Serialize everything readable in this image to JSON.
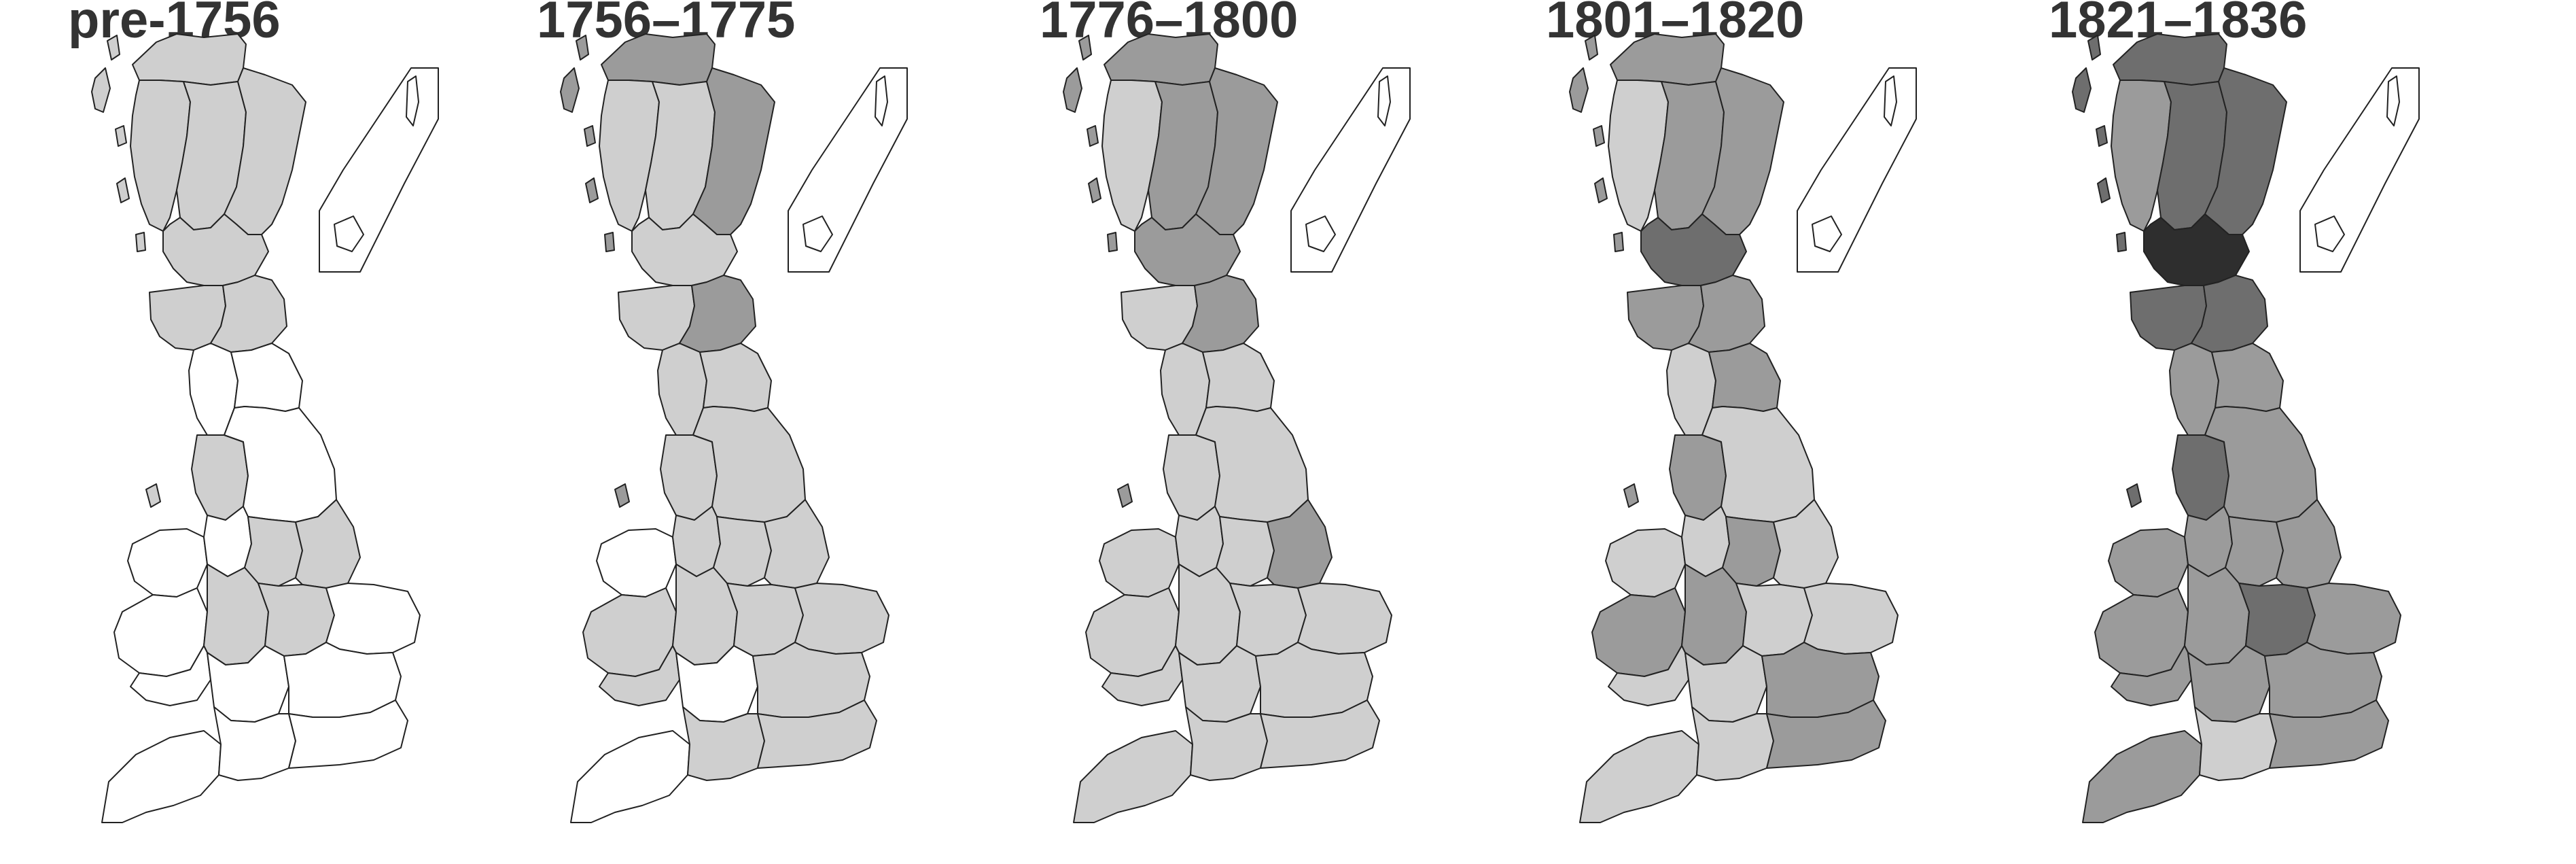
{
  "panels": [
    {
      "title": "pre-1756",
      "fills": [
        "1",
        "1",
        "1",
        "1",
        "1",
        "1",
        "1",
        "0",
        "0",
        "1",
        "0",
        "0",
        "0",
        "1",
        "1",
        "0",
        "1",
        "1",
        "0",
        "0",
        "0",
        "0",
        "0",
        "0",
        "0"
      ]
    },
    {
      "title": "1756–1775",
      "fills": [
        "2",
        "1",
        "1",
        "2",
        "1",
        "1",
        "2",
        "1",
        "1",
        "1",
        "1",
        "0",
        "1",
        "1",
        "1",
        "1",
        "1",
        "1",
        "1",
        "1",
        "0",
        "1",
        "0",
        "1",
        "1"
      ]
    },
    {
      "title": "1776–1800",
      "fills": [
        "2",
        "1",
        "2",
        "2",
        "2",
        "1",
        "2",
        "1",
        "1",
        "1",
        "1",
        "1",
        "1",
        "1",
        "2",
        "1",
        "1",
        "1",
        "1",
        "1",
        "1",
        "1",
        "1",
        "1",
        "1"
      ]
    },
    {
      "title": "1801–1820",
      "fills": [
        "2",
        "1",
        "2",
        "2",
        "3",
        "2",
        "2",
        "1",
        "2",
        "2",
        "1",
        "1",
        "1",
        "2",
        "1",
        "2",
        "2",
        "1",
        "1",
        "1",
        "1",
        "2",
        "1",
        "1",
        "2"
      ]
    },
    {
      "title": "1821–1836",
      "fills": [
        "3",
        "2",
        "3",
        "3",
        "4",
        "3",
        "3",
        "2",
        "2",
        "3",
        "2",
        "2",
        "2",
        "2",
        "2",
        "2",
        "2",
        "3",
        "2",
        "2",
        "2",
        "2",
        "2",
        "1",
        "2"
      ]
    }
  ],
  "fill_colors": {
    "0": "#ffffff",
    "1": "#cfcfcf",
    "2": "#9b9b9b",
    "3": "#6e6e6e",
    "4": "#2e2e2e"
  }
}
